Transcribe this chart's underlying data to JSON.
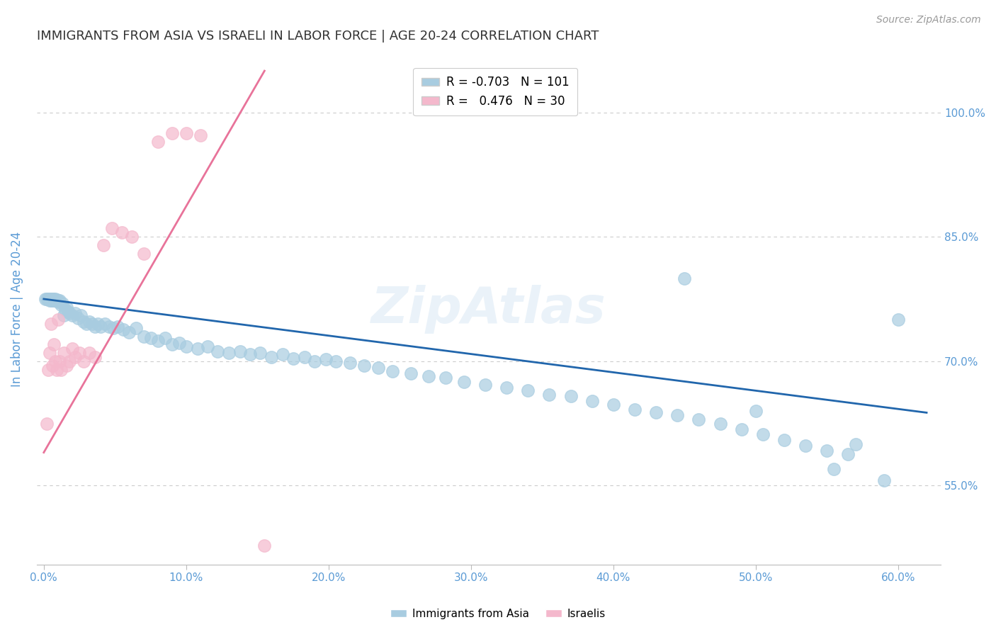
{
  "title": "IMMIGRANTS FROM ASIA VS ISRAELI IN LABOR FORCE | AGE 20-24 CORRELATION CHART",
  "source": "Source: ZipAtlas.com",
  "ylabel": "In Labor Force | Age 20-24",
  "x_ticks": [
    0.0,
    0.1,
    0.2,
    0.3,
    0.4,
    0.5,
    0.6
  ],
  "x_tick_labels": [
    "0.0%",
    "10.0%",
    "20.0%",
    "30.0%",
    "40.0%",
    "50.0%",
    "60.0%"
  ],
  "y_ticks": [
    0.55,
    0.7,
    0.85,
    1.0
  ],
  "y_tick_labels": [
    "55.0%",
    "70.0%",
    "85.0%",
    "100.0%"
  ],
  "xlim": [
    -0.005,
    0.63
  ],
  "ylim": [
    0.455,
    1.07
  ],
  "blue_R": -0.703,
  "blue_N": 101,
  "pink_R": 0.476,
  "pink_N": 30,
  "blue_color": "#a8cce0",
  "pink_color": "#f4b8cc",
  "blue_line_color": "#2166ac",
  "pink_line_color": "#e8739a",
  "title_color": "#333333",
  "axis_label_color": "#5b9bd5",
  "tick_color": "#5b9bd5",
  "grid_color": "#cccccc",
  "watermark": "ZipAtlas",
  "blue_scatter_x": [
    0.001,
    0.002,
    0.003,
    0.003,
    0.004,
    0.004,
    0.005,
    0.005,
    0.005,
    0.006,
    0.006,
    0.006,
    0.007,
    0.007,
    0.007,
    0.008,
    0.008,
    0.008,
    0.009,
    0.009,
    0.01,
    0.01,
    0.011,
    0.012,
    0.013,
    0.014,
    0.015,
    0.016,
    0.017,
    0.018,
    0.02,
    0.022,
    0.024,
    0.026,
    0.028,
    0.03,
    0.032,
    0.034,
    0.036,
    0.038,
    0.04,
    0.043,
    0.046,
    0.049,
    0.052,
    0.056,
    0.06,
    0.065,
    0.07,
    0.075,
    0.08,
    0.085,
    0.09,
    0.095,
    0.1,
    0.108,
    0.115,
    0.122,
    0.13,
    0.138,
    0.145,
    0.152,
    0.16,
    0.168,
    0.175,
    0.183,
    0.19,
    0.198,
    0.205,
    0.215,
    0.225,
    0.235,
    0.245,
    0.258,
    0.27,
    0.282,
    0.295,
    0.31,
    0.325,
    0.34,
    0.355,
    0.37,
    0.385,
    0.4,
    0.415,
    0.43,
    0.445,
    0.46,
    0.475,
    0.49,
    0.505,
    0.52,
    0.535,
    0.55,
    0.565,
    0.45,
    0.5,
    0.555,
    0.57,
    0.59,
    0.6
  ],
  "blue_scatter_y": [
    0.775,
    0.775,
    0.775,
    0.775,
    0.773,
    0.775,
    0.775,
    0.773,
    0.775,
    0.775,
    0.773,
    0.775,
    0.774,
    0.775,
    0.773,
    0.774,
    0.775,
    0.773,
    0.774,
    0.773,
    0.773,
    0.772,
    0.773,
    0.768,
    0.77,
    0.755,
    0.762,
    0.765,
    0.76,
    0.758,
    0.755,
    0.758,
    0.752,
    0.755,
    0.748,
    0.745,
    0.748,
    0.745,
    0.742,
    0.745,
    0.742,
    0.745,
    0.742,
    0.74,
    0.742,
    0.738,
    0.735,
    0.74,
    0.73,
    0.728,
    0.725,
    0.728,
    0.72,
    0.722,
    0.718,
    0.715,
    0.718,
    0.712,
    0.71,
    0.712,
    0.708,
    0.71,
    0.705,
    0.708,
    0.703,
    0.705,
    0.7,
    0.702,
    0.7,
    0.698,
    0.695,
    0.692,
    0.688,
    0.685,
    0.682,
    0.68,
    0.675,
    0.672,
    0.668,
    0.665,
    0.66,
    0.658,
    0.652,
    0.648,
    0.642,
    0.638,
    0.635,
    0.63,
    0.625,
    0.618,
    0.612,
    0.605,
    0.598,
    0.592,
    0.588,
    0.8,
    0.64,
    0.57,
    0.6,
    0.556,
    0.75
  ],
  "pink_scatter_x": [
    0.002,
    0.003,
    0.004,
    0.005,
    0.006,
    0.007,
    0.008,
    0.009,
    0.01,
    0.011,
    0.012,
    0.014,
    0.016,
    0.018,
    0.02,
    0.022,
    0.025,
    0.028,
    0.032,
    0.036,
    0.042,
    0.048,
    0.055,
    0.062,
    0.07,
    0.08,
    0.09,
    0.1,
    0.11,
    0.155
  ],
  "pink_scatter_y": [
    0.625,
    0.69,
    0.71,
    0.745,
    0.695,
    0.72,
    0.7,
    0.69,
    0.75,
    0.7,
    0.69,
    0.71,
    0.695,
    0.7,
    0.715,
    0.705,
    0.71,
    0.7,
    0.71,
    0.705,
    0.84,
    0.86,
    0.855,
    0.85,
    0.83,
    0.965,
    0.975,
    0.975,
    0.972,
    0.478
  ],
  "blue_line_x0": 0.0,
  "blue_line_x1": 0.62,
  "blue_line_y0": 0.775,
  "blue_line_y1": 0.638,
  "pink_line_x0": 0.0,
  "pink_line_x1": 0.155,
  "pink_line_y0": 0.59,
  "pink_line_y1": 1.05
}
